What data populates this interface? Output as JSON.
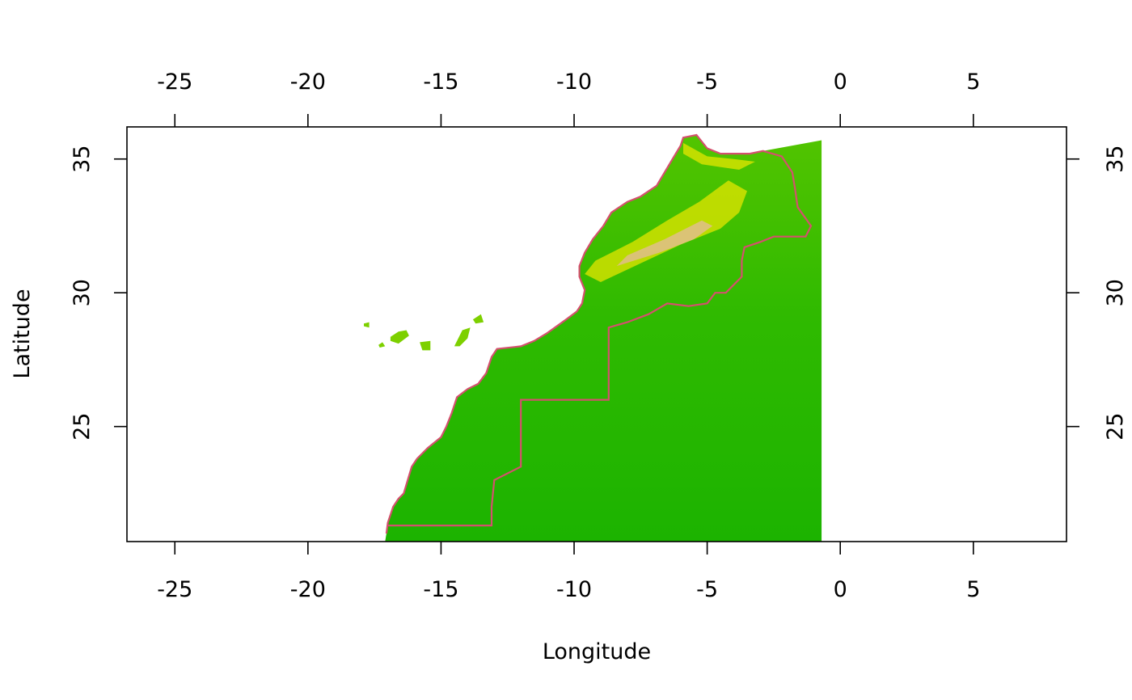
{
  "map": {
    "xlabel": "Longitude",
    "ylabel": "Latitude",
    "xlim": [
      -26.8,
      8.5
    ],
    "ylim": [
      20.7,
      36.2
    ],
    "x_ticks": [
      -25,
      -20,
      -15,
      -10,
      -5,
      0,
      5
    ],
    "y_ticks": [
      25,
      30,
      35
    ],
    "x_tick_labels": [
      "-25",
      "-20",
      "-15",
      "-10",
      "-5",
      "0",
      "5"
    ],
    "y_tick_labels": [
      "25",
      "30",
      "35"
    ],
    "raster_extent": {
      "lon": [
        -17.1,
        -0.7
      ],
      "lat": [
        20.7,
        35.9
      ]
    },
    "colors": {
      "lowland": "#1cb300",
      "mid": "#7dd000",
      "high": "#e6e600",
      "peak": "#e8b8a8",
      "border": "#d4506e"
    },
    "border_lonlat": [
      [
        -17.05,
        21.0
      ],
      [
        -17.0,
        21.4
      ],
      [
        -16.8,
        22.0
      ],
      [
        -16.6,
        22.3
      ],
      [
        -16.4,
        22.5
      ],
      [
        -16.1,
        23.5
      ],
      [
        -15.9,
        23.8
      ],
      [
        -15.5,
        24.2
      ],
      [
        -15.0,
        24.6
      ],
      [
        -14.8,
        25.0
      ],
      [
        -14.6,
        25.5
      ],
      [
        -14.4,
        26.1
      ],
      [
        -14.0,
        26.4
      ],
      [
        -13.6,
        26.6
      ],
      [
        -13.3,
        27.0
      ],
      [
        -13.1,
        27.6
      ],
      [
        -12.9,
        27.9
      ],
      [
        -12.0,
        28.0
      ],
      [
        -11.5,
        28.2
      ],
      [
        -11.0,
        28.5
      ],
      [
        -10.3,
        29.0
      ],
      [
        -9.9,
        29.3
      ],
      [
        -9.7,
        29.6
      ],
      [
        -9.6,
        30.1
      ],
      [
        -9.8,
        30.6
      ],
      [
        -9.8,
        31.0
      ],
      [
        -9.6,
        31.5
      ],
      [
        -9.3,
        32.0
      ],
      [
        -8.9,
        32.5
      ],
      [
        -8.6,
        33.0
      ],
      [
        -8.0,
        33.4
      ],
      [
        -7.5,
        33.6
      ],
      [
        -6.9,
        34.0
      ],
      [
        -6.6,
        34.5
      ],
      [
        -6.3,
        35.0
      ],
      [
        -6.0,
        35.5
      ],
      [
        -5.9,
        35.8
      ],
      [
        -5.4,
        35.9
      ],
      [
        -5.0,
        35.4
      ],
      [
        -4.5,
        35.2
      ],
      [
        -3.9,
        35.2
      ],
      [
        -3.4,
        35.2
      ],
      [
        -2.9,
        35.3
      ],
      [
        -2.2,
        35.1
      ],
      [
        -1.8,
        34.5
      ],
      [
        -1.7,
        33.9
      ],
      [
        -1.6,
        33.2
      ],
      [
        -1.1,
        32.5
      ],
      [
        -1.3,
        32.1
      ],
      [
        -2.5,
        32.1
      ],
      [
        -3.0,
        31.9
      ],
      [
        -3.6,
        31.7
      ],
      [
        -3.7,
        31.2
      ],
      [
        -3.7,
        30.6
      ],
      [
        -4.3,
        30.0
      ],
      [
        -4.7,
        30.0
      ],
      [
        -5.0,
        29.6
      ],
      [
        -5.7,
        29.5
      ],
      [
        -6.5,
        29.6
      ],
      [
        -7.2,
        29.2
      ],
      [
        -8.0,
        28.9
      ],
      [
        -8.7,
        28.7
      ],
      [
        -8.7,
        27.6
      ],
      [
        -8.7,
        26.0
      ],
      [
        -12.0,
        26.0
      ],
      [
        -12.0,
        23.5
      ],
      [
        -13.0,
        23.0
      ],
      [
        -13.1,
        22.0
      ],
      [
        -13.1,
        21.3
      ],
      [
        -17.0,
        21.3
      ]
    ],
    "islands_lonlat": [
      [
        [
          -16.9,
          28.35
        ],
        [
          -16.6,
          28.55
        ],
        [
          -16.3,
          28.6
        ],
        [
          -16.2,
          28.4
        ],
        [
          -16.6,
          28.1
        ],
        [
          -16.9,
          28.2
        ]
      ],
      [
        [
          -15.8,
          28.15
        ],
        [
          -15.4,
          28.2
        ],
        [
          -15.4,
          27.85
        ],
        [
          -15.7,
          27.85
        ]
      ],
      [
        [
          -14.5,
          28.0
        ],
        [
          -14.2,
          28.6
        ],
        [
          -13.9,
          28.7
        ],
        [
          -14.0,
          28.3
        ],
        [
          -14.3,
          28.0
        ]
      ],
      [
        [
          -17.35,
          28.05
        ],
        [
          -17.2,
          28.15
        ],
        [
          -17.1,
          28.0
        ],
        [
          -17.3,
          27.95
        ]
      ],
      [
        [
          -13.8,
          29.0
        ],
        [
          -13.5,
          29.2
        ],
        [
          -13.4,
          28.9
        ],
        [
          -13.7,
          28.85
        ]
      ],
      [
        [
          -17.9,
          28.85
        ],
        [
          -17.7,
          28.9
        ],
        [
          -17.7,
          28.7
        ],
        [
          -17.9,
          28.75
        ]
      ]
    ],
    "highland_lonlat": [
      [
        [
          -9.0,
          30.4
        ],
        [
          -7.5,
          31.1
        ],
        [
          -6.0,
          31.8
        ],
        [
          -4.5,
          32.4
        ],
        [
          -3.8,
          33.0
        ],
        [
          -3.5,
          33.8
        ],
        [
          -4.2,
          34.2
        ],
        [
          -5.3,
          33.4
        ],
        [
          -6.5,
          32.7
        ],
        [
          -7.8,
          31.9
        ],
        [
          -9.2,
          31.2
        ],
        [
          -9.6,
          30.7
        ]
      ],
      [
        [
          -5.9,
          35.6
        ],
        [
          -5.0,
          35.1
        ],
        [
          -4.0,
          35.0
        ],
        [
          -3.2,
          34.9
        ],
        [
          -3.8,
          34.6
        ],
        [
          -5.2,
          34.8
        ],
        [
          -5.9,
          35.2
        ]
      ]
    ],
    "peak_lonlat": [
      [
        [
          -8.4,
          31.0
        ],
        [
          -6.8,
          31.5
        ],
        [
          -5.5,
          32.0
        ],
        [
          -4.8,
          32.5
        ],
        [
          -5.2,
          32.7
        ],
        [
          -6.6,
          32.0
        ],
        [
          -8.0,
          31.4
        ]
      ]
    ]
  }
}
